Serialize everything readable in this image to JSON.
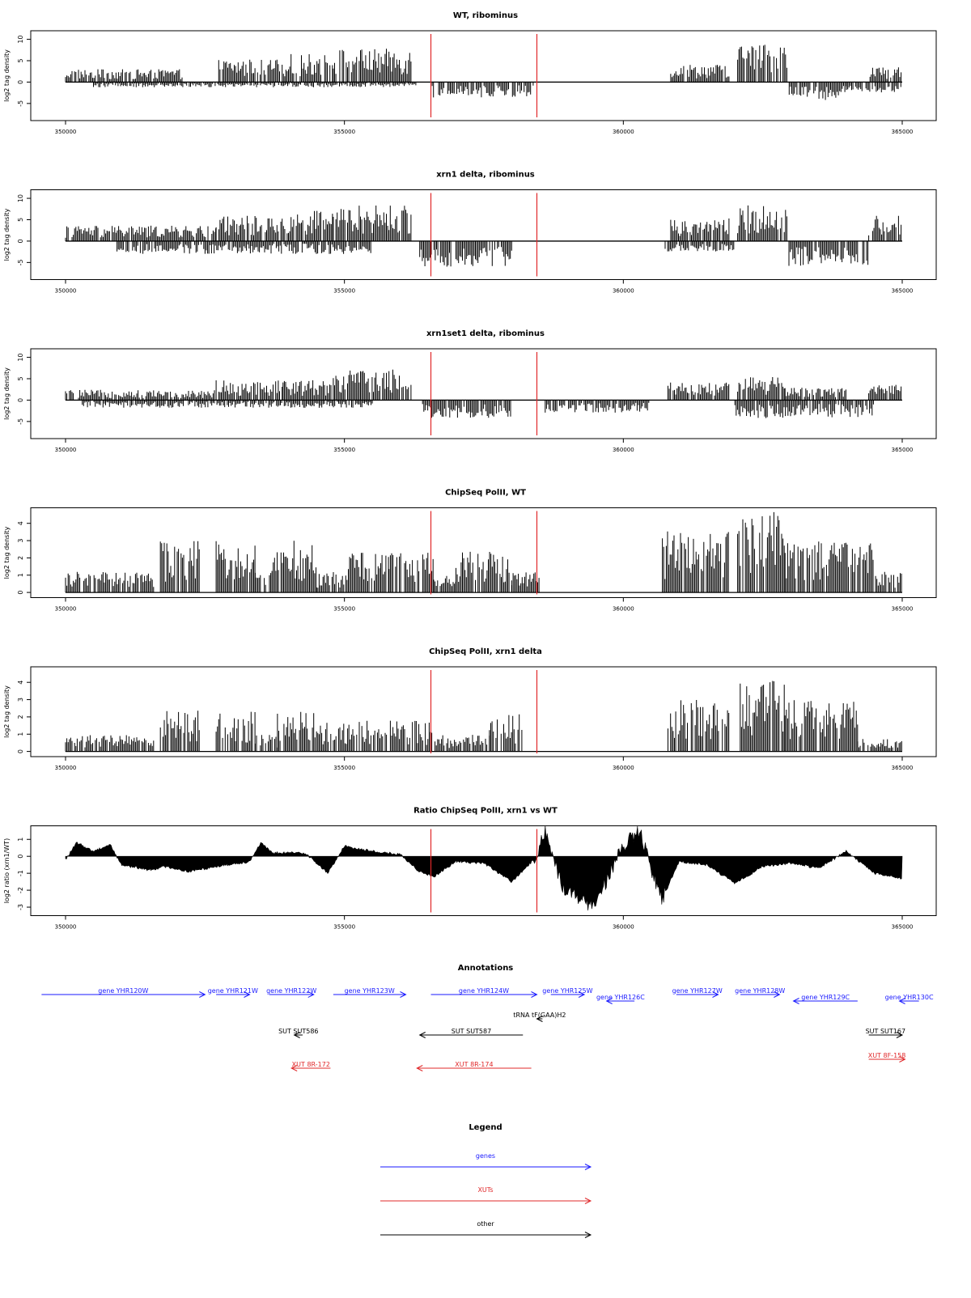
{
  "chart_data": [
    {
      "type": "bar",
      "title": "WT, ribominus",
      "ylabel": "log2 tag density",
      "xlim": [
        350000,
        365000
      ],
      "ylim": [
        -9,
        12
      ],
      "yticks": [
        -5,
        0,
        5,
        10
      ],
      "xticks": [
        350000,
        355000,
        360000,
        365000
      ],
      "xtick_labels": [
        "350000",
        "355000",
        "360000",
        "365000"
      ],
      "markers": [
        356550,
        358450
      ],
      "marker_color": "#e0282a",
      "bar_color": "#000000",
      "series": [
        {
          "direction": "plus",
          "segments": [
            {
              "start": 350000,
              "end": 352100,
              "level": 2.5
            },
            {
              "start": 352700,
              "end": 353950,
              "level": 4.5
            },
            {
              "start": 353950,
              "end": 354800,
              "level": 5.5
            },
            {
              "start": 354800,
              "end": 356200,
              "level": 6.5
            },
            {
              "start": 360850,
              "end": 361900,
              "level": 3.5
            },
            {
              "start": 362050,
              "end": 362950,
              "level": 7.5
            },
            {
              "start": 364400,
              "end": 365000,
              "level": 3.0
            }
          ]
        },
        {
          "direction": "minus",
          "segments": [
            {
              "start": 350500,
              "end": 356300,
              "level": 1.0
            },
            {
              "start": 356550,
              "end": 358400,
              "level": 3.0
            },
            {
              "start": 362950,
              "end": 364000,
              "level": 3.5
            },
            {
              "start": 364000,
              "end": 365000,
              "level": 2.0
            }
          ]
        }
      ]
    },
    {
      "type": "bar",
      "title": "xrn1 delta, ribominus",
      "ylabel": "log2 tag density",
      "xlim": [
        350000,
        365000
      ],
      "ylim": [
        -9,
        12
      ],
      "yticks": [
        -5,
        0,
        5,
        10
      ],
      "xticks": [
        350000,
        355000,
        360000,
        365000
      ],
      "xtick_labels": [
        "350000",
        "355000",
        "360000",
        "365000"
      ],
      "markers": [
        356550,
        358450
      ],
      "marker_color": "#e0282a",
      "bar_color": "#000000",
      "series": [
        {
          "direction": "plus",
          "segments": [
            {
              "start": 350000,
              "end": 352700,
              "level": 3.0
            },
            {
              "start": 352700,
              "end": 353950,
              "level": 5.0
            },
            {
              "start": 353950,
              "end": 354800,
              "level": 6.0
            },
            {
              "start": 354800,
              "end": 356200,
              "level": 7.0
            },
            {
              "start": 360850,
              "end": 361900,
              "level": 4.5
            },
            {
              "start": 362050,
              "end": 362950,
              "level": 7.0
            },
            {
              "start": 364400,
              "end": 365000,
              "level": 5.0
            }
          ]
        },
        {
          "direction": "minus",
          "segments": [
            {
              "start": 350900,
              "end": 355500,
              "level": 2.5
            },
            {
              "start": 356350,
              "end": 358000,
              "level": 5.0
            },
            {
              "start": 360750,
              "end": 362000,
              "level": 2.0
            },
            {
              "start": 362900,
              "end": 364400,
              "level": 5.0
            }
          ]
        }
      ]
    },
    {
      "type": "bar",
      "title": "xrn1set1 delta, ribominus",
      "ylabel": "log2 tag density",
      "xlim": [
        350000,
        365000
      ],
      "ylim": [
        -9,
        12
      ],
      "yticks": [
        -5,
        0,
        5,
        10
      ],
      "xticks": [
        350000,
        355000,
        360000,
        365000
      ],
      "xtick_labels": [
        "350000",
        "355000",
        "360000",
        "365000"
      ],
      "markers": [
        356550,
        358450
      ],
      "marker_color": "#e0282a",
      "bar_color": "#000000",
      "series": [
        {
          "direction": "plus",
          "segments": [
            {
              "start": 350000,
              "end": 352700,
              "level": 2.0
            },
            {
              "start": 352700,
              "end": 353900,
              "level": 4.0
            },
            {
              "start": 353900,
              "end": 354800,
              "level": 4.0
            },
            {
              "start": 354800,
              "end": 356200,
              "level": 6.0
            },
            {
              "start": 360800,
              "end": 361900,
              "level": 3.5
            },
            {
              "start": 362050,
              "end": 362900,
              "level": 4.5
            },
            {
              "start": 362900,
              "end": 364000,
              "level": 2.5
            },
            {
              "start": 364400,
              "end": 365000,
              "level": 3.0
            }
          ]
        },
        {
          "direction": "minus",
          "segments": [
            {
              "start": 350300,
              "end": 355500,
              "level": 1.5
            },
            {
              "start": 356400,
              "end": 358000,
              "level": 3.5
            },
            {
              "start": 358600,
              "end": 360500,
              "level": 2.5
            },
            {
              "start": 362000,
              "end": 364500,
              "level": 3.5
            }
          ]
        }
      ]
    },
    {
      "type": "bar",
      "title": "ChipSeq PolII, WT",
      "ylabel": "log2 tag density",
      "xlim": [
        350000,
        365000
      ],
      "ylim": [
        -0.3,
        4.9
      ],
      "yticks": [
        0,
        1,
        2,
        3,
        4
      ],
      "xticks": [
        350000,
        355000,
        360000,
        365000
      ],
      "xtick_labels": [
        "350000",
        "355000",
        "360000",
        "365000"
      ],
      "markers": [
        356550,
        358450
      ],
      "marker_color": "#e0282a",
      "bar_color": "#000000",
      "series": [
        {
          "direction": "plus",
          "segments": [
            {
              "start": 350000,
              "end": 351600,
              "level": 1.0
            },
            {
              "start": 351700,
              "end": 352400,
              "level": 2.5
            },
            {
              "start": 352700,
              "end": 353400,
              "level": 2.5
            },
            {
              "start": 353400,
              "end": 353700,
              "level": 1.0
            },
            {
              "start": 353700,
              "end": 354500,
              "level": 2.5
            },
            {
              "start": 354500,
              "end": 355000,
              "level": 1.0
            },
            {
              "start": 355000,
              "end": 355800,
              "level": 2.0
            },
            {
              "start": 355800,
              "end": 356600,
              "level": 2.0
            },
            {
              "start": 356600,
              "end": 357000,
              "level": 1.0
            },
            {
              "start": 357000,
              "end": 358000,
              "level": 2.0
            },
            {
              "start": 358000,
              "end": 358500,
              "level": 1.0
            },
            {
              "start": 360700,
              "end": 361900,
              "level": 3.0
            },
            {
              "start": 362050,
              "end": 362900,
              "level": 4.0
            },
            {
              "start": 362900,
              "end": 364500,
              "level": 2.5
            },
            {
              "start": 364500,
              "end": 365000,
              "level": 1.0
            }
          ]
        }
      ]
    },
    {
      "type": "bar",
      "title": "ChipSeq PolII, xrn1 delta",
      "ylabel": "log2 tag density",
      "xlim": [
        350000,
        365000
      ],
      "ylim": [
        -0.3,
        4.9
      ],
      "yticks": [
        0,
        1,
        2,
        3,
        4
      ],
      "xticks": [
        350000,
        355000,
        360000,
        365000
      ],
      "xtick_labels": [
        "350000",
        "355000",
        "360000",
        "365000"
      ],
      "markers": [
        356550,
        358450
      ],
      "marker_color": "#e0282a",
      "bar_color": "#000000",
      "series": [
        {
          "direction": "plus",
          "segments": [
            {
              "start": 350000,
              "end": 351600,
              "level": 0.8
            },
            {
              "start": 351700,
              "end": 352400,
              "level": 2.0
            },
            {
              "start": 352700,
              "end": 353400,
              "level": 2.0
            },
            {
              "start": 353400,
              "end": 353800,
              "level": 0.8
            },
            {
              "start": 353800,
              "end": 354500,
              "level": 2.0
            },
            {
              "start": 354500,
              "end": 356600,
              "level": 1.5
            },
            {
              "start": 356600,
              "end": 357600,
              "level": 0.8
            },
            {
              "start": 357600,
              "end": 358200,
              "level": 1.8
            },
            {
              "start": 360800,
              "end": 361900,
              "level": 2.5
            },
            {
              "start": 362050,
              "end": 362900,
              "level": 3.5
            },
            {
              "start": 362900,
              "end": 364200,
              "level": 2.5
            },
            {
              "start": 364200,
              "end": 365000,
              "level": 0.6
            }
          ]
        }
      ]
    },
    {
      "type": "area",
      "title": "Ratio ChipSeq PolII, xrn1 vs WT",
      "ylabel": "log2 ratio (xrn1/WT)",
      "xlim": [
        350000,
        365000
      ],
      "ylim": [
        -3.5,
        1.8
      ],
      "yticks": [
        -3,
        -2,
        -1,
        0,
        1
      ],
      "xticks": [
        350000,
        355000,
        360000,
        365000
      ],
      "xtick_labels": [
        "350000",
        "355000",
        "360000",
        "365000"
      ],
      "markers": [
        356550,
        358450
      ],
      "marker_color": "#e0282a",
      "bar_color": "#000000",
      "x": [
        350000,
        350200,
        350500,
        350800,
        351000,
        351500,
        351800,
        352200,
        352700,
        353300,
        353500,
        353700,
        354300,
        354700,
        355000,
        355500,
        356000,
        356300,
        356600,
        357000,
        357500,
        358000,
        358400,
        358600,
        358900,
        359200,
        359400,
        359700,
        360000,
        360300,
        360500,
        360700,
        361000,
        361500,
        362000,
        362500,
        363000,
        363500,
        364000,
        364500,
        365000
      ],
      "y": [
        -0.2,
        0.8,
        0.3,
        0.7,
        -0.5,
        -0.8,
        -0.6,
        -0.9,
        -0.6,
        -0.3,
        0.8,
        0.2,
        0.2,
        -1.0,
        0.6,
        0.3,
        0.1,
        -0.8,
        -1.2,
        -0.3,
        -0.4,
        -1.5,
        -0.2,
        1.5,
        -1.8,
        -2.4,
        -3.1,
        -1.4,
        0.6,
        1.5,
        -0.8,
        -2.5,
        -0.3,
        -0.5,
        -1.6,
        -0.6,
        -0.4,
        -0.7,
        0.3,
        -1.0,
        -1.3
      ]
    }
  ],
  "annotations": {
    "title": "Annotations",
    "features": [
      {
        "label": "gene YHR120W",
        "start": 349570,
        "end": 352500,
        "dir": "plus",
        "kind": "gene",
        "row": 0
      },
      {
        "label": "gene YHR121W",
        "start": 352700,
        "end": 353300,
        "dir": "plus",
        "kind": "gene",
        "row": 0
      },
      {
        "label": "gene YHR122W",
        "start": 353650,
        "end": 354450,
        "dir": "plus",
        "kind": "gene",
        "row": 0
      },
      {
        "label": "gene YHR123W",
        "start": 354800,
        "end": 356100,
        "dir": "plus",
        "kind": "gene",
        "row": 0
      },
      {
        "label": "gene YHR124W",
        "start": 356550,
        "end": 358450,
        "dir": "plus",
        "kind": "gene",
        "row": 0
      },
      {
        "label": "gene YHR125W",
        "start": 358700,
        "end": 359300,
        "dir": "plus",
        "kind": "gene",
        "row": 0
      },
      {
        "label": "gene YHR126C",
        "start": 359700,
        "end": 360200,
        "dir": "minus",
        "kind": "gene",
        "row": 1
      },
      {
        "label": "gene YHR127W",
        "start": 360950,
        "end": 361700,
        "dir": "plus",
        "kind": "gene",
        "row": 0
      },
      {
        "label": "gene YHR128W",
        "start": 362100,
        "end": 362800,
        "dir": "plus",
        "kind": "gene",
        "row": 0
      },
      {
        "label": "gene YHR129C",
        "start": 363050,
        "end": 364200,
        "dir": "minus",
        "kind": "gene",
        "row": 1
      },
      {
        "label": "gene YHR130C",
        "start": 364950,
        "end": 365300,
        "dir": "minus",
        "kind": "gene",
        "row": 1
      },
      {
        "label": "tRNA tF(GAA)H2",
        "start": 358450,
        "end": 358550,
        "dir": "minus",
        "kind": "other",
        "row": 2
      },
      {
        "label": "SUT SUT586",
        "start": 354100,
        "end": 354250,
        "dir": "minus",
        "kind": "other",
        "row": 3
      },
      {
        "label": "SUT SUT587",
        "start": 356350,
        "end": 358200,
        "dir": "minus",
        "kind": "other",
        "row": 3
      },
      {
        "label": "SUT SUT167",
        "start": 364400,
        "end": 365000,
        "dir": "plus",
        "kind": "other",
        "row": 3
      },
      {
        "label": "XUT 8R-172",
        "start": 354050,
        "end": 354750,
        "dir": "minus",
        "kind": "xut",
        "row": 4
      },
      {
        "label": "XUT 8R-174",
        "start": 356300,
        "end": 358350,
        "dir": "minus",
        "kind": "xut",
        "row": 4
      },
      {
        "label": "XUT 8F-158",
        "start": 364400,
        "end": 365050,
        "dir": "plus",
        "kind": "xut",
        "row": 5
      }
    ]
  },
  "legend": {
    "title": "Legend",
    "items": [
      {
        "label": "genes",
        "color": "#1a1aff"
      },
      {
        "label": "XUTs",
        "color": "#e0282a"
      },
      {
        "label": "other",
        "color": "#000000"
      }
    ]
  },
  "colors": {
    "gene": "#1a1aff",
    "xut": "#e0282a",
    "other": "#000000",
    "marker": "#e0282a"
  }
}
